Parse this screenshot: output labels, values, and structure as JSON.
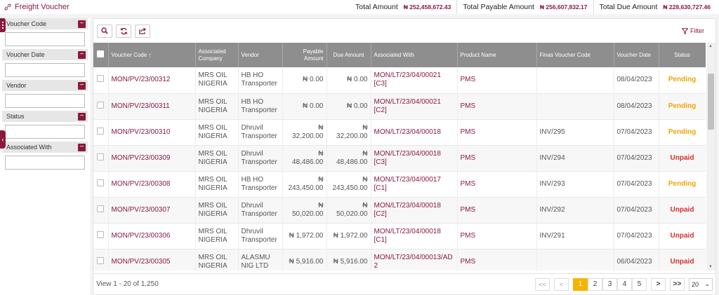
{
  "header": {
    "title": "Freight Voucher",
    "totals": [
      {
        "label": "Total Amount",
        "value": "₦ 252,458,672.43"
      },
      {
        "label": "Total Payable Amount",
        "value": "₦ 256,607,832.17"
      },
      {
        "label": "Total Due Amount",
        "value": "₦ 228,630,727.46"
      }
    ]
  },
  "sidebar": {
    "filters": [
      {
        "label": "Voucher Code",
        "value": ""
      },
      {
        "label": "Voucher Date",
        "value": ""
      },
      {
        "label": "Vendor",
        "value": ""
      },
      {
        "label": "Status",
        "value": ""
      },
      {
        "label": "Associated With",
        "value": ""
      }
    ]
  },
  "toolbar": {
    "filter_label": "Filter"
  },
  "table": {
    "columns": [
      "Voucher Code",
      "Associated Company",
      "Vendor",
      "Payable Amount",
      "Due Amount",
      "Associated With",
      "Product Name",
      "Finas Voucher Code",
      "Voucher Date",
      "Status"
    ],
    "rows": [
      {
        "code": "MON/PV/23/00312",
        "company": "MRS OIL NIGERIA",
        "vendor": "HB HO Transporter",
        "payable": "₦ 0.00",
        "due": "₦ 0.00",
        "assoc": "MON/LT/23/04/00021 [C3]",
        "product": "PMS",
        "finas": "",
        "date": "08/04/2023",
        "status": "Pending"
      },
      {
        "code": "MON/PV/23/00311",
        "company": "MRS OIL NIGERIA",
        "vendor": "HB HO Transporter",
        "payable": "₦ 0.00",
        "due": "₦ 0.00",
        "assoc": "MON/LT/23/04/00021 [C2]",
        "product": "PMS",
        "finas": "",
        "date": "08/04/2023",
        "status": "Pending"
      },
      {
        "code": "MON/PV/23/00310",
        "company": "MRS OIL NIGERIA",
        "vendor": "Dhruvil Transporter",
        "payable": "₦ 32,200.00",
        "due": "₦ 32,200.00",
        "assoc": "MON/LT/23/04/00018",
        "product": "PMS",
        "finas": "INV/295",
        "date": "07/04/2023",
        "status": "Pending"
      },
      {
        "code": "MON/PV/23/00309",
        "company": "MRS OIL NIGERIA",
        "vendor": "Dhruvil Transporter",
        "payable": "₦ 48,486.00",
        "due": "₦ 48,486.00",
        "assoc": "MON/LT/23/04/00018 [C3]",
        "product": "PMS",
        "finas": "INV/294",
        "date": "07/04/2023",
        "status": "Unpaid"
      },
      {
        "code": "MON/PV/23/00308",
        "company": "MRS OIL NIGERIA",
        "vendor": "HB HO Transporter",
        "payable": "₦ 243,450.00",
        "due": "₦ 243,450.00",
        "assoc": "MON/LT/23/04/00017 [C1]",
        "product": "PMS",
        "finas": "INV/293",
        "date": "07/04/2023",
        "status": "Pending"
      },
      {
        "code": "MON/PV/23/00307",
        "company": "MRS OIL NIGERIA",
        "vendor": "Dhruvil Transporter",
        "payable": "₦ 50,020.00",
        "due": "₦ 50,020.00",
        "assoc": "MON/LT/23/04/00018 [C2]",
        "product": "PMS",
        "finas": "INV/292",
        "date": "07/04/2023",
        "status": "Unpaid"
      },
      {
        "code": "MON/PV/23/00306",
        "company": "MRS OIL NIGERIA",
        "vendor": "Dhruvil Transporter",
        "payable": "₦ 1,972.00",
        "due": "₦ 1,972.00",
        "assoc": "MON/LT/23/04/00018 [C1]",
        "product": "PMS",
        "finas": "INV/291",
        "date": "07/04/2023",
        "status": "Unpaid"
      },
      {
        "code": "MON/PV/23/00305",
        "company": "MRS OIL NIGERIA",
        "vendor": "ALASMU NIG LTD",
        "payable": "₦ 5,916.00",
        "due": "₦ 5,916.00",
        "assoc": "MON/LT/23/04/00013/AD 2",
        "product": "PMS",
        "finas": "",
        "date": "06/04/2023",
        "status": "Unpaid"
      }
    ]
  },
  "footer": {
    "view_text": "View 1 - 20 of 1,250",
    "first": "<<",
    "prev": "<",
    "pages": [
      "1",
      "2",
      "3",
      "4",
      "5"
    ],
    "current_page": "1",
    "next": ">",
    "last": ">>",
    "page_size": "20"
  },
  "colors": {
    "accent": "#8b1a3a",
    "pending": "#f0a500",
    "unpaid": "#d32f2f",
    "active_page": "#f6b400"
  }
}
